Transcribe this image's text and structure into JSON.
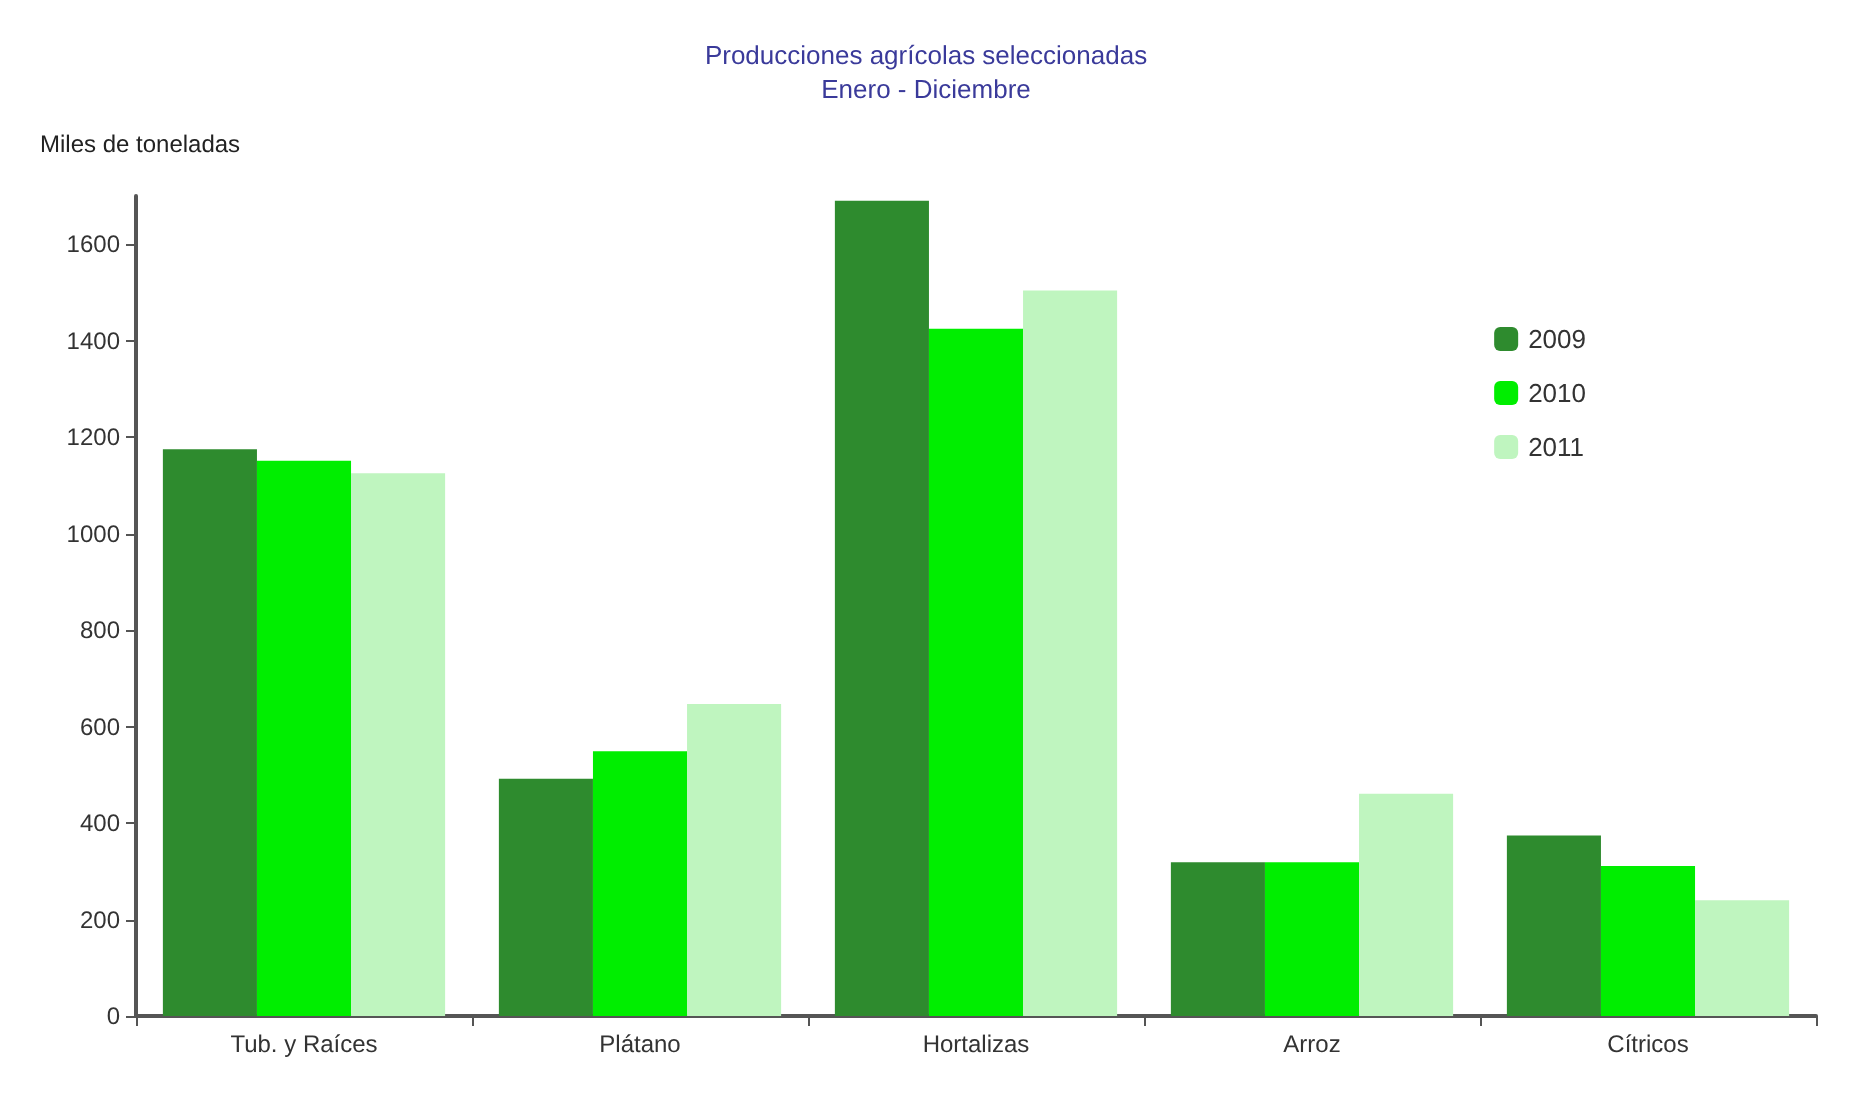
{
  "chart_data": {
    "type": "bar",
    "title": "Producciones agrícolas seleccionadas",
    "subtitle": "Enero - Diciembre",
    "ylabel": "Miles de toneladas",
    "categories": [
      "Tub. y Raíces",
      "Plátano",
      "Hortalizas",
      "Arroz",
      "Cítricos"
    ],
    "series": [
      {
        "name": "2009",
        "color": "#2e8b2e",
        "values": [
          1175,
          492,
          1690,
          319,
          374
        ]
      },
      {
        "name": "2010",
        "color": "#00ee00",
        "values": [
          1151,
          549,
          1425,
          319,
          311
        ]
      },
      {
        "name": "2011",
        "color": "#bff5bf",
        "values": [
          1125,
          647,
          1504,
          461,
          240
        ]
      }
    ],
    "ylim": [
      0,
      1700
    ],
    "yticks": [
      0,
      200,
      400,
      600,
      800,
      1000,
      1200,
      1400,
      1600
    ],
    "grid": false,
    "legend": "top right"
  }
}
